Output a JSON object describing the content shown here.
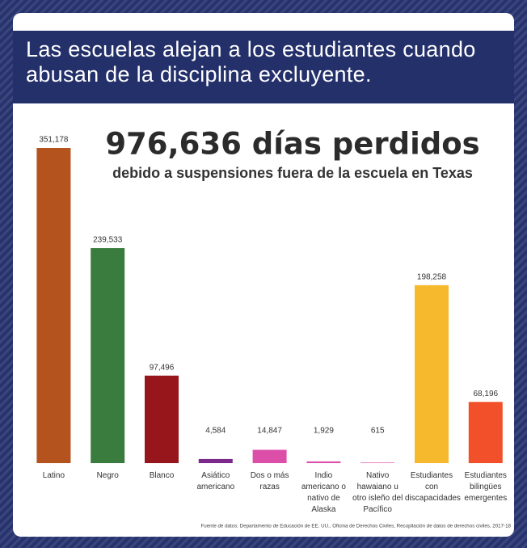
{
  "chart_data": {
    "type": "bar",
    "title": "Las escuelas alejan a los estudiantes cuando abusan de la disciplina excluyente.",
    "headline": "976,636 días perdidos",
    "subtitle": "debido a suspensiones fuera de la escuela en Texas",
    "categories": [
      "Latino",
      "Negro",
      "Blanco",
      "Asiático americano",
      "Dos o más razas",
      "Indio americano o nativo de Alaska",
      "Nativo hawaiano u otro isleño del Pacífico",
      "Estudiantes con discapacidades",
      "Estudiantes bilingües emergentes"
    ],
    "values": [
      351178,
      239533,
      97496,
      4584,
      14847,
      1929,
      615,
      198258,
      68196
    ],
    "value_labels": [
      "351,178",
      "239,533",
      "97,496",
      "4,584",
      "14,847",
      "1,929",
      "615",
      "198,258",
      "68,196"
    ],
    "colors": [
      "#b5531f",
      "#3a7c3d",
      "#96161b",
      "#7b2a8c",
      "#dc4fa8",
      "#dc4fa8",
      "#dc4fa8",
      "#f6b82c",
      "#f2502a"
    ],
    "source": "Fuente de datos: Departamento de Educación de EE. UU., Oficina de Derechos Civiles, Recopilación de datos de derechos civiles, 2017-18"
  }
}
